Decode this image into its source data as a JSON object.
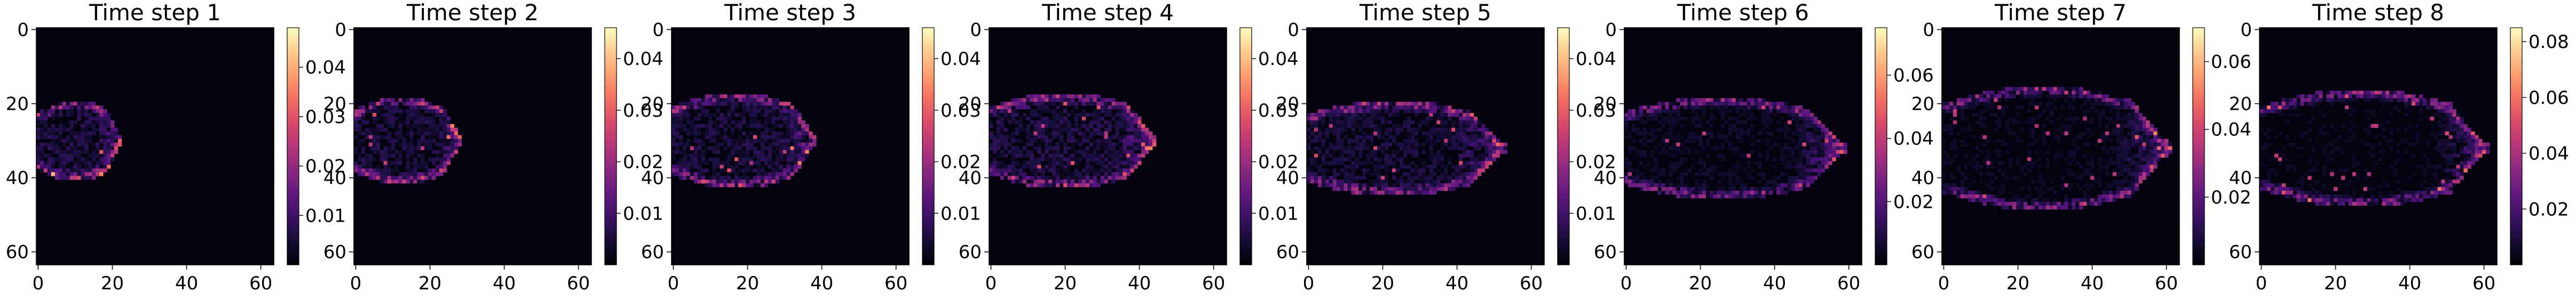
{
  "chart_data": [
    {
      "type": "heatmap",
      "title": "Time step 1",
      "x_ticks": [
        "0",
        "20",
        "40",
        "60"
      ],
      "y_ticks": [
        "0",
        "20",
        "40",
        "60"
      ],
      "xlim": [
        0,
        63
      ],
      "ylim": [
        63,
        0
      ],
      "colormap": "magma",
      "colorbar": {
        "ticks": [
          "0.01",
          "0.02",
          "0.03",
          "0.04"
        ],
        "tick_values": [
          0.01,
          0.02,
          0.03,
          0.04
        ],
        "range": [
          0,
          0.048
        ]
      },
      "plume": {
        "x0": 0,
        "x1": 22,
        "ycenter": 30,
        "halfwidth": 10,
        "peak": 0.046,
        "fill": 0.55
      }
    },
    {
      "type": "heatmap",
      "title": "Time step 2",
      "x_ticks": [
        "0",
        "20",
        "40",
        "60"
      ],
      "y_ticks": [
        "0",
        "20",
        "40",
        "60"
      ],
      "xlim": [
        0,
        63
      ],
      "ylim": [
        63,
        0
      ],
      "colormap": "magma",
      "colorbar": {
        "ticks": [
          "0.01",
          "0.02",
          "0.03",
          "0.04"
        ],
        "tick_values": [
          0.01,
          0.02,
          0.03,
          0.04
        ],
        "range": [
          0,
          0.046
        ]
      },
      "plume": {
        "x0": 0,
        "x1": 28,
        "ycenter": 30,
        "halfwidth": 11,
        "peak": 0.044,
        "fill": 0.5
      }
    },
    {
      "type": "heatmap",
      "title": "Time step 3",
      "x_ticks": [
        "0",
        "20",
        "40",
        "60"
      ],
      "y_ticks": [
        "0",
        "20",
        "40",
        "60"
      ],
      "xlim": [
        0,
        63
      ],
      "ylim": [
        63,
        0
      ],
      "colormap": "magma",
      "colorbar": {
        "ticks": [
          "0.01",
          "0.02",
          "0.03",
          "0.04"
        ],
        "tick_values": [
          0.01,
          0.02,
          0.03,
          0.04
        ],
        "range": [
          0,
          0.046
        ]
      },
      "plume": {
        "x0": 0,
        "x1": 38,
        "ycenter": 30,
        "halfwidth": 12,
        "peak": 0.044,
        "fill": 0.5
      }
    },
    {
      "type": "heatmap",
      "title": "Time step 4",
      "x_ticks": [
        "0",
        "20",
        "40",
        "60"
      ],
      "y_ticks": [
        "0",
        "20",
        "40",
        "60"
      ],
      "xlim": [
        0,
        63
      ],
      "ylim": [
        63,
        0
      ],
      "colormap": "magma",
      "colorbar": {
        "ticks": [
          "0.01",
          "0.02",
          "0.03",
          "0.04"
        ],
        "tick_values": [
          0.01,
          0.02,
          0.03,
          0.04
        ],
        "range": [
          0,
          0.046
        ]
      },
      "plume": {
        "x0": 0,
        "x1": 44,
        "ycenter": 30,
        "halfwidth": 12,
        "peak": 0.044,
        "fill": 0.55
      }
    },
    {
      "type": "heatmap",
      "title": "Time step 5",
      "x_ticks": [
        "0",
        "20",
        "40",
        "60"
      ],
      "y_ticks": [
        "0",
        "20",
        "40",
        "60"
      ],
      "xlim": [
        0,
        63
      ],
      "ylim": [
        63,
        0
      ],
      "colormap": "magma",
      "colorbar": {
        "ticks": [
          "0.01",
          "0.02",
          "0.03",
          "0.04"
        ],
        "tick_values": [
          0.01,
          0.02,
          0.03,
          0.04
        ],
        "range": [
          0,
          0.046
        ]
      },
      "plume": {
        "x0": 0,
        "x1": 52,
        "ycenter": 32,
        "halfwidth": 12,
        "peak": 0.044,
        "fill": 0.45
      }
    },
    {
      "type": "heatmap",
      "title": "Time step 6",
      "x_ticks": [
        "0",
        "20",
        "40",
        "60"
      ],
      "y_ticks": [
        "0",
        "20",
        "40",
        "60"
      ],
      "xlim": [
        0,
        63
      ],
      "ylim": [
        63,
        0
      ],
      "colormap": "magma",
      "colorbar": {
        "ticks": [
          "0.02",
          "0.04",
          "0.06"
        ],
        "tick_values": [
          0.02,
          0.04,
          0.06
        ],
        "range": [
          0,
          0.075
        ]
      },
      "plume": {
        "x0": 0,
        "x1": 58,
        "ycenter": 32,
        "halfwidth": 13,
        "peak": 0.07,
        "fill": 0.3
      }
    },
    {
      "type": "heatmap",
      "title": "Time step 7",
      "x_ticks": [
        "0",
        "20",
        "40",
        "60"
      ],
      "y_ticks": [
        "0",
        "20",
        "40",
        "60"
      ],
      "xlim": [
        0,
        63
      ],
      "ylim": [
        63,
        0
      ],
      "colormap": "magma",
      "colorbar": {
        "ticks": [
          "0.02",
          "0.04",
          "0.06"
        ],
        "tick_values": [
          0.02,
          0.04,
          0.06
        ],
        "range": [
          0,
          0.07
        ]
      },
      "plume": {
        "x0": 0,
        "x1": 60,
        "ycenter": 32,
        "halfwidth": 16,
        "peak": 0.065,
        "fill": 0.25
      }
    },
    {
      "type": "heatmap",
      "title": "Time step 8",
      "x_ticks": [
        "0",
        "20",
        "40",
        "60"
      ],
      "y_ticks": [
        "0",
        "20",
        "40",
        "60"
      ],
      "xlim": [
        0,
        63
      ],
      "ylim": [
        63,
        0
      ],
      "colormap": "magma",
      "colorbar": {
        "ticks": [
          "0.02",
          "0.04",
          "0.06",
          "0.08"
        ],
        "tick_values": [
          0.02,
          0.04,
          0.06,
          0.08
        ],
        "range": [
          0,
          0.085
        ]
      },
      "plume": {
        "x0": 0,
        "x1": 60,
        "ycenter": 32,
        "halfwidth": 15,
        "peak": 0.08,
        "fill": 0.22
      }
    }
  ]
}
